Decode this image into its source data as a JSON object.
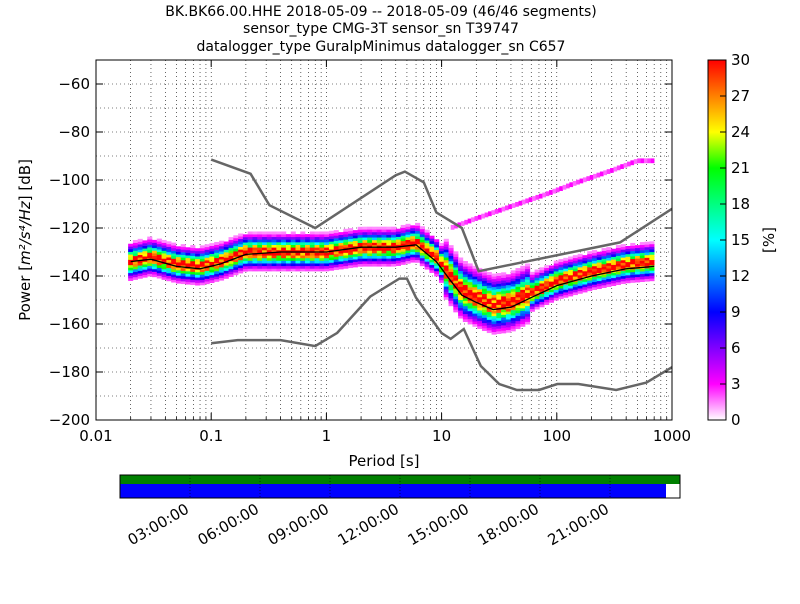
{
  "chart_data": {
    "type": "heatmap",
    "title_lines": [
      "BK.BK66.00.HHE   2018-05-09 -- 2018-05-09  (46/46 segments)",
      "sensor_type CMG-3T sensor_sn T39747",
      "datalogger_type GuralpMinimus datalogger_sn C657"
    ],
    "xlabel": "Period [s]",
    "ylabel_prefix": "Power [",
    "ylabel_units": "m²/s⁴/Hz",
    "ylabel_suffix": "] [dB]",
    "x_scale": "log",
    "xlim": [
      0.01,
      1000
    ],
    "ylim": [
      -200,
      -50
    ],
    "x_ticks": [
      {
        "v": 0.01,
        "label": "0.01"
      },
      {
        "v": 0.1,
        "label": "0.1"
      },
      {
        "v": 1,
        "label": "1"
      },
      {
        "v": 10,
        "label": "10"
      },
      {
        "v": 100,
        "label": "100"
      },
      {
        "v": 1000,
        "label": "1000"
      }
    ],
    "y_ticks": [
      {
        "v": -60,
        "label": "−60"
      },
      {
        "v": -80,
        "label": "−80"
      },
      {
        "v": -100,
        "label": "−100"
      },
      {
        "v": -120,
        "label": "−120"
      },
      {
        "v": -140,
        "label": "−140"
      },
      {
        "v": -160,
        "label": "−160"
      },
      {
        "v": -180,
        "label": "−180"
      },
      {
        "v": -200,
        "label": "−200"
      }
    ],
    "grid": "dotted",
    "colorbar": {
      "label": "[%]",
      "range": [
        0,
        30
      ],
      "ticks": [
        {
          "v": 0,
          "label": "0"
        },
        {
          "v": 3,
          "label": "3"
        },
        {
          "v": 6,
          "label": "6"
        },
        {
          "v": 9,
          "label": "9"
        },
        {
          "v": 12,
          "label": "12"
        },
        {
          "v": 15,
          "label": "15"
        },
        {
          "v": 18,
          "label": "18"
        },
        {
          "v": 21,
          "label": "21"
        },
        {
          "v": 24,
          "label": "24"
        },
        {
          "v": 27,
          "label": "27"
        },
        {
          "v": 30,
          "label": "30"
        }
      ],
      "colors": [
        "#ffffff",
        "#ff00ff",
        "#8000ff",
        "#0000ff",
        "#0080ff",
        "#00ffff",
        "#00ff80",
        "#00ff00",
        "#ffff00",
        "#ff8000",
        "#ff0000"
      ]
    },
    "noise_models": {
      "color": "#666666",
      "high": [
        [
          0.1,
          -91.5
        ],
        [
          0.22,
          -97.4
        ],
        [
          0.32,
          -110.5
        ],
        [
          0.8,
          -120
        ],
        [
          4,
          -98
        ],
        [
          4.8,
          -96.5
        ],
        [
          7,
          -101
        ],
        [
          9,
          -113.5
        ],
        [
          15,
          -120
        ],
        [
          21,
          -138
        ],
        [
          354,
          -126
        ],
        [
          1000,
          -112
        ]
      ],
      "low": [
        [
          0.1,
          -168
        ],
        [
          0.17,
          -166.7
        ],
        [
          0.4,
          -166.7
        ],
        [
          0.8,
          -169.2
        ],
        [
          1.24,
          -163.7
        ],
        [
          2.4,
          -148.6
        ],
        [
          4.3,
          -141.1
        ],
        [
          5,
          -141.1
        ],
        [
          6,
          -149
        ],
        [
          10,
          -163.8
        ],
        [
          12,
          -166.2
        ],
        [
          15.6,
          -162.1
        ],
        [
          21.9,
          -177.5
        ],
        [
          31.6,
          -185
        ],
        [
          45,
          -187.5
        ],
        [
          70,
          -187.5
        ],
        [
          101,
          -185
        ],
        [
          154,
          -185
        ],
        [
          328,
          -187.5
        ],
        [
          600,
          -184.4
        ],
        [
          1000,
          -178
        ]
      ]
    },
    "median_curve": {
      "color": "#000000",
      "points": [
        [
          0.02,
          -134
        ],
        [
          0.03,
          -133
        ],
        [
          0.05,
          -136
        ],
        [
          0.08,
          -137
        ],
        [
          0.12,
          -135
        ],
        [
          0.2,
          -131
        ],
        [
          0.4,
          -130
        ],
        [
          1,
          -130
        ],
        [
          2,
          -128
        ],
        [
          4,
          -128
        ],
        [
          6,
          -127
        ],
        [
          9,
          -134
        ],
        [
          12,
          -142
        ],
        [
          15,
          -148
        ],
        [
          20,
          -151
        ],
        [
          28,
          -154
        ],
        [
          40,
          -153
        ],
        [
          60,
          -149
        ],
        [
          100,
          -144
        ],
        [
          200,
          -140
        ],
        [
          400,
          -137
        ],
        [
          700,
          -136
        ]
      ]
    },
    "mode_curve": {
      "points": [
        [
          0.02,
          -134
        ],
        [
          0.03,
          -132
        ],
        [
          0.05,
          -135
        ],
        [
          0.08,
          -136
        ],
        [
          0.12,
          -134
        ],
        [
          0.2,
          -130
        ],
        [
          0.4,
          -130
        ],
        [
          1,
          -130
        ],
        [
          2,
          -128
        ],
        [
          4,
          -128
        ],
        [
          6,
          -126
        ],
        [
          9,
          -132
        ],
        [
          12,
          -140
        ],
        [
          15,
          -146
        ],
        [
          20,
          -149
        ],
        [
          28,
          -152
        ],
        [
          40,
          -151
        ],
        [
          60,
          -147
        ],
        [
          100,
          -142
        ],
        [
          200,
          -138
        ],
        [
          400,
          -135
        ],
        [
          700,
          -134
        ]
      ]
    },
    "secondary_branch": [
      [
        12,
        -120
      ],
      [
        20,
        -116
      ],
      [
        40,
        -111
      ],
      [
        80,
        -106
      ],
      [
        150,
        -101
      ],
      [
        300,
        -96
      ],
      [
        500,
        -92
      ],
      [
        700,
        -92
      ]
    ],
    "timeline": {
      "top_color": "#008000",
      "bottom_color": "#0000ff",
      "coverage_fraction": 0.975,
      "labels": [
        "03:00:00",
        "06:00:00",
        "09:00:00",
        "12:00:00",
        "15:00:00",
        "18:00:00",
        "21:00:00"
      ]
    }
  }
}
